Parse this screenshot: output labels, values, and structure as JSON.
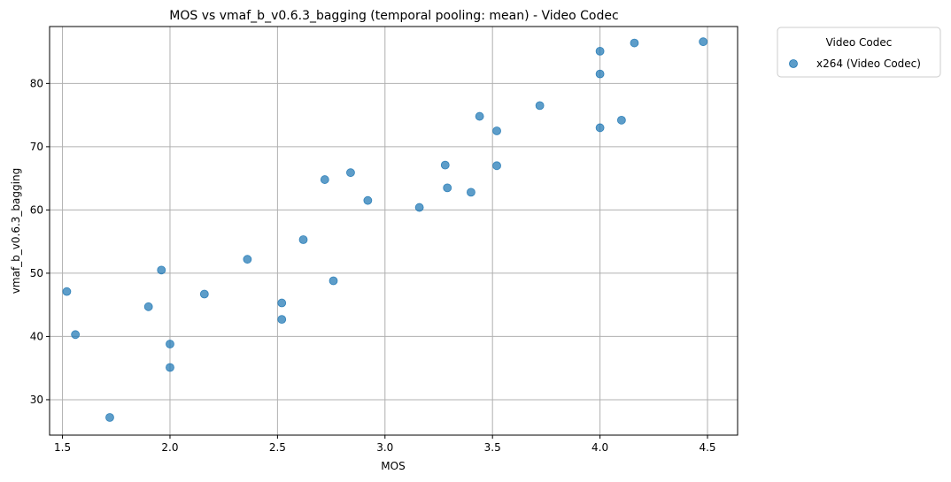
{
  "chart_data": {
    "type": "scatter",
    "title": "MOS vs vmaf_b_v0.6.3_bagging (temporal pooling: mean) - Video Codec",
    "xlabel": "MOS",
    "ylabel": "vmaf_b_v0.6.3_bagging",
    "xlim": [
      1.44,
      4.64
    ],
    "ylim": [
      24.4,
      89.0
    ],
    "xticks": [
      "1.5",
      "2.0",
      "2.5",
      "3.0",
      "3.5",
      "4.0",
      "4.5"
    ],
    "yticks": [
      "30",
      "40",
      "50",
      "60",
      "70",
      "80"
    ],
    "grid": true,
    "legend": {
      "title": "Video Codec",
      "placement": "outside-top-right"
    },
    "series": [
      {
        "name": "x264 (Video Codec)",
        "color": "#1f77b4",
        "points": [
          {
            "x": 1.52,
            "y": 47.1
          },
          {
            "x": 1.56,
            "y": 40.3
          },
          {
            "x": 1.72,
            "y": 27.2
          },
          {
            "x": 1.9,
            "y": 44.7
          },
          {
            "x": 1.96,
            "y": 50.5
          },
          {
            "x": 2.0,
            "y": 38.8
          },
          {
            "x": 2.0,
            "y": 35.1
          },
          {
            "x": 2.16,
            "y": 46.7
          },
          {
            "x": 2.36,
            "y": 52.2
          },
          {
            "x": 2.52,
            "y": 45.3
          },
          {
            "x": 2.52,
            "y": 42.7
          },
          {
            "x": 2.62,
            "y": 55.3
          },
          {
            "x": 2.72,
            "y": 64.8
          },
          {
            "x": 2.76,
            "y": 48.8
          },
          {
            "x": 2.84,
            "y": 65.9
          },
          {
            "x": 2.92,
            "y": 61.5
          },
          {
            "x": 3.16,
            "y": 60.4
          },
          {
            "x": 3.28,
            "y": 67.1
          },
          {
            "x": 3.29,
            "y": 63.5
          },
          {
            "x": 3.4,
            "y": 62.8
          },
          {
            "x": 3.44,
            "y": 74.8
          },
          {
            "x": 3.52,
            "y": 72.5
          },
          {
            "x": 3.52,
            "y": 67.0
          },
          {
            "x": 3.72,
            "y": 76.5
          },
          {
            "x": 4.0,
            "y": 85.1
          },
          {
            "x": 4.0,
            "y": 81.5
          },
          {
            "x": 4.0,
            "y": 73.0
          },
          {
            "x": 4.1,
            "y": 74.2
          },
          {
            "x": 4.16,
            "y": 86.4
          },
          {
            "x": 4.48,
            "y": 86.6
          }
        ]
      }
    ]
  }
}
